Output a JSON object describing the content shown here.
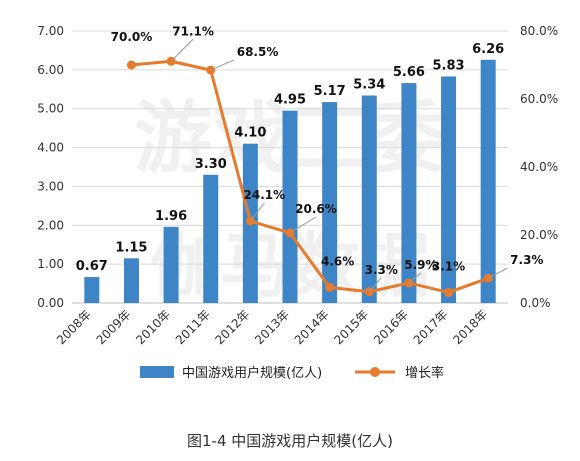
{
  "caption": "图1-4  中国游戏用户规模(亿人)",
  "watermark": "游戏工委 伽马数据",
  "chart_data": {
    "type": "bar",
    "categories": [
      "2008年",
      "2009年",
      "2010年",
      "2011年",
      "2012年",
      "2013年",
      "2014年",
      "2015年",
      "2016年",
      "2017年",
      "2018年"
    ],
    "series": [
      {
        "name": "中国游戏用户规模(亿人)",
        "type": "bar",
        "axis": "left",
        "color": "#3d85c6",
        "values": [
          0.67,
          1.15,
          1.96,
          3.3,
          4.1,
          4.95,
          5.17,
          5.34,
          5.66,
          5.83,
          6.26
        ],
        "labels": [
          "0.67",
          "1.15",
          "1.96",
          "3.30",
          "4.10",
          "4.95",
          "5.17",
          "5.34",
          "5.66",
          "5.83",
          "6.26"
        ]
      },
      {
        "name": "增长率",
        "type": "line",
        "axis": "right",
        "color": "#e87b2b",
        "values": [
          null,
          70.0,
          71.1,
          68.5,
          24.1,
          20.6,
          4.6,
          3.3,
          5.9,
          3.1,
          7.3
        ],
        "labels": [
          "",
          "70.0%",
          "71.1%",
          "68.5%",
          "24.1%",
          "20.6%",
          "4.6%",
          "3.3%",
          "5.9%",
          "3.1%",
          "7.3%"
        ]
      }
    ],
    "y_left": {
      "min": 0,
      "max": 7,
      "ticks": [
        "0.00",
        "1.00",
        "2.00",
        "3.00",
        "4.00",
        "5.00",
        "6.00",
        "7.00"
      ]
    },
    "y_right": {
      "min": 0,
      "max": 80,
      "ticks": [
        "0.0%",
        "20.0%",
        "40.0%",
        "60.0%",
        "80.0%"
      ]
    },
    "grid": true,
    "legend_position": "bottom"
  }
}
